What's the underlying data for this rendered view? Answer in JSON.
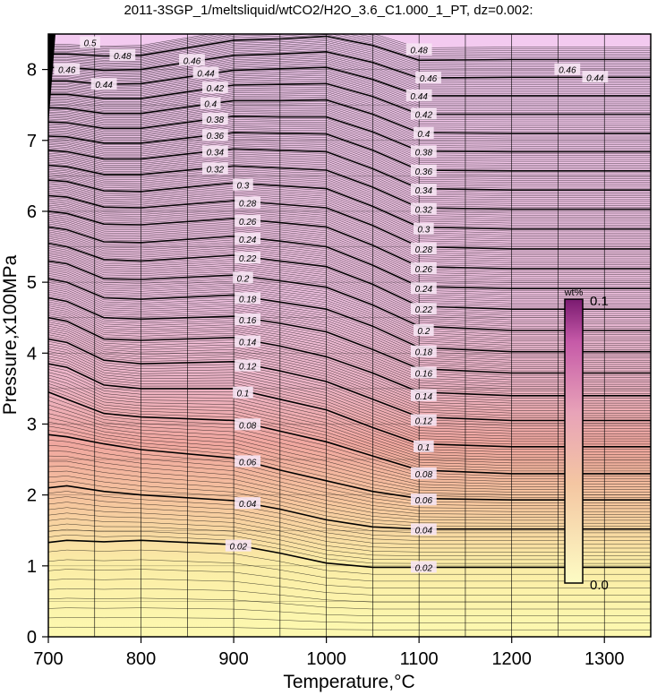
{
  "chart_data": {
    "type": "heatmap",
    "title": "2011-3SGP_1/meltsliquid/wtCO2/H2O_3.6_C1.000_1_PT, dz=0.002:",
    "xlabel": "Temperature,°C",
    "ylabel": "Pressure,x100MPa",
    "xlim": [
      700,
      1350
    ],
    "ylim": [
      0,
      8.5
    ],
    "x_ticks": [
      700,
      800,
      900,
      1000,
      1100,
      1200,
      1300
    ],
    "y_ticks": [
      0,
      1,
      2,
      3,
      4,
      5,
      6,
      7,
      8
    ],
    "x_tick_labels": [
      "700",
      "800",
      "900",
      "1000",
      "1100",
      "1200",
      "1300"
    ],
    "y_tick_labels": [
      "0",
      "1",
      "2",
      "3",
      "4",
      "5",
      "6",
      "7",
      "8"
    ],
    "grid": true,
    "contour_interval": 0.002,
    "major_contour_interval": 0.02,
    "contours": [
      {
        "level": 0.02,
        "label": "0.02",
        "x": [
          700,
          720,
          760,
          800,
          900,
          950,
          1000,
          1050,
          1100,
          1200,
          1350
        ],
        "y": [
          1.33,
          1.36,
          1.34,
          1.36,
          1.3,
          1.18,
          1.04,
          0.98,
          0.98,
          0.98,
          0.98
        ]
      },
      {
        "level": 0.04,
        "label": "0.04",
        "x": [
          700,
          720,
          760,
          800,
          900,
          950,
          1000,
          1050,
          1100,
          1200,
          1350
        ],
        "y": [
          2.1,
          2.13,
          2.05,
          2.0,
          1.92,
          1.8,
          1.65,
          1.55,
          1.52,
          1.52,
          1.52
        ]
      },
      {
        "level": 0.06,
        "label": "0.06",
        "x": [
          700,
          720,
          760,
          800,
          900,
          950,
          1000,
          1050,
          1100,
          1200,
          1350
        ],
        "y": [
          2.85,
          2.82,
          2.72,
          2.64,
          2.52,
          2.35,
          2.2,
          2.05,
          1.95,
          1.93,
          1.93
        ]
      },
      {
        "level": 0.08,
        "label": "0.08",
        "x": [
          700,
          720,
          760,
          800,
          900,
          950,
          1000,
          1050,
          1100,
          1200,
          1350
        ],
        "y": [
          3.45,
          3.35,
          3.15,
          3.1,
          3.05,
          2.9,
          2.75,
          2.55,
          2.35,
          2.3,
          2.3
        ]
      },
      {
        "level": 0.1,
        "label": "0.1",
        "x": [
          700,
          720,
          760,
          800,
          900,
          950,
          1000,
          1050,
          1100,
          1200,
          1350
        ],
        "y": [
          3.85,
          3.8,
          3.55,
          3.5,
          3.5,
          3.35,
          3.2,
          2.95,
          2.72,
          2.68,
          2.68
        ]
      },
      {
        "level": 0.12,
        "label": "0.12",
        "x": [
          700,
          720,
          760,
          800,
          900,
          950,
          1000,
          1050,
          1100,
          1200,
          1350
        ],
        "y": [
          4.2,
          4.15,
          3.9,
          3.85,
          3.88,
          3.75,
          3.6,
          3.35,
          3.1,
          3.05,
          3.05
        ]
      },
      {
        "level": 0.14,
        "label": "0.14",
        "x": [
          700,
          720,
          760,
          800,
          900,
          950,
          1000,
          1050,
          1100,
          1200,
          1350
        ],
        "y": [
          4.5,
          4.45,
          4.2,
          4.18,
          4.22,
          4.1,
          3.95,
          3.72,
          3.45,
          3.4,
          3.4
        ]
      },
      {
        "level": 0.16,
        "label": "0.16",
        "x": [
          700,
          720,
          760,
          800,
          900,
          950,
          1000,
          1050,
          1100,
          1200,
          1350
        ],
        "y": [
          4.78,
          4.73,
          4.5,
          4.48,
          4.52,
          4.42,
          4.3,
          4.05,
          3.78,
          3.72,
          3.72
        ]
      },
      {
        "level": 0.18,
        "label": "0.18",
        "x": [
          700,
          720,
          760,
          800,
          900,
          950,
          1000,
          1050,
          1100,
          1200,
          1350
        ],
        "y": [
          5.05,
          5.0,
          4.78,
          4.76,
          4.82,
          4.72,
          4.62,
          4.38,
          4.08,
          4.02,
          4.02
        ]
      },
      {
        "level": 0.2,
        "label": "0.2",
        "x": [
          700,
          720,
          760,
          800,
          900,
          950,
          1000,
          1050,
          1100,
          1200,
          1350
        ],
        "y": [
          5.3,
          5.26,
          5.05,
          5.04,
          5.1,
          5.02,
          4.93,
          4.68,
          4.38,
          4.32,
          4.32
        ]
      },
      {
        "level": 0.22,
        "label": "0.22",
        "x": [
          700,
          720,
          760,
          800,
          900,
          950,
          1000,
          1050,
          1100,
          1200,
          1350
        ],
        "y": [
          5.55,
          5.5,
          5.32,
          5.3,
          5.38,
          5.3,
          5.22,
          4.97,
          4.66,
          4.62,
          4.62
        ]
      },
      {
        "level": 0.24,
        "label": "0.24",
        "x": [
          700,
          720,
          760,
          800,
          900,
          950,
          1000,
          1050,
          1100,
          1200,
          1350
        ],
        "y": [
          5.78,
          5.74,
          5.57,
          5.56,
          5.65,
          5.58,
          5.5,
          5.24,
          4.94,
          4.91,
          4.91
        ]
      },
      {
        "level": 0.26,
        "label": "0.26",
        "x": [
          700,
          720,
          760,
          800,
          900,
          950,
          1000,
          1050,
          1100,
          1200,
          1350
        ],
        "y": [
          6.0,
          5.97,
          5.82,
          5.81,
          5.9,
          5.84,
          5.78,
          5.52,
          5.22,
          5.19,
          5.19
        ]
      },
      {
        "level": 0.28,
        "label": "0.28",
        "x": [
          700,
          720,
          760,
          800,
          900,
          950,
          1000,
          1050,
          1100,
          1200,
          1350
        ],
        "y": [
          6.22,
          6.2,
          6.06,
          6.05,
          6.15,
          6.1,
          6.05,
          5.8,
          5.5,
          5.47,
          5.47
        ]
      },
      {
        "level": 0.3,
        "label": "0.3",
        "x": [
          700,
          720,
          760,
          800,
          900,
          950,
          1000,
          1050,
          1100,
          1200,
          1350
        ],
        "y": [
          6.44,
          6.42,
          6.29,
          6.28,
          6.4,
          6.36,
          6.32,
          6.07,
          5.78,
          5.75,
          5.75
        ]
      },
      {
        "level": 0.32,
        "label": "0.32",
        "x": [
          700,
          720,
          760,
          800,
          900,
          950,
          1000,
          1050,
          1100,
          1200,
          1350
        ],
        "y": [
          6.65,
          6.63,
          6.52,
          6.52,
          6.64,
          6.61,
          6.58,
          6.34,
          6.05,
          6.03,
          6.03
        ]
      },
      {
        "level": 0.34,
        "label": "0.34",
        "x": [
          700,
          720,
          760,
          800,
          900,
          950,
          1000,
          1050,
          1100,
          1200,
          1350
        ],
        "y": [
          6.86,
          6.84,
          6.74,
          6.74,
          6.88,
          6.86,
          6.84,
          6.6,
          6.32,
          6.3,
          6.3
        ]
      },
      {
        "level": 0.36,
        "label": "0.36",
        "x": [
          700,
          720,
          760,
          800,
          900,
          950,
          1000,
          1050,
          1100,
          1200,
          1350
        ],
        "y": [
          7.06,
          7.05,
          6.96,
          6.96,
          7.11,
          7.1,
          7.09,
          6.86,
          6.58,
          6.57,
          6.57
        ]
      },
      {
        "level": 0.38,
        "label": "0.38",
        "x": [
          700,
          720,
          760,
          800,
          900,
          950,
          1000,
          1050,
          1100,
          1200,
          1350
        ],
        "y": [
          7.26,
          7.25,
          7.17,
          7.17,
          7.34,
          7.33,
          7.33,
          7.12,
          6.85,
          6.84,
          6.84
        ]
      },
      {
        "level": 0.4,
        "label": "0.4",
        "x": [
          700,
          720,
          760,
          800,
          900,
          950,
          1000,
          1050,
          1100,
          1200,
          1350
        ],
        "y": [
          7.46,
          7.45,
          7.38,
          7.38,
          7.56,
          7.56,
          7.57,
          7.37,
          7.11,
          7.1,
          7.1
        ]
      },
      {
        "level": 0.42,
        "label": "0.42",
        "x": [
          700,
          720,
          760,
          800,
          900,
          950,
          1000,
          1050,
          1100,
          1200,
          1350
        ],
        "y": [
          7.65,
          7.65,
          7.59,
          7.59,
          7.78,
          7.79,
          7.8,
          7.62,
          7.37,
          7.37,
          7.37
        ]
      },
      {
        "level": 0.44,
        "label": "0.44",
        "x": [
          700,
          720,
          760,
          800,
          900,
          950,
          1000,
          1050,
          1100,
          1200,
          1350
        ],
        "y": [
          7.84,
          7.84,
          7.79,
          7.8,
          7.99,
          8.01,
          8.03,
          7.86,
          7.63,
          7.63,
          7.63
        ]
      },
      {
        "level": 0.46,
        "label": "0.46",
        "x": [
          700,
          720,
          760,
          800,
          900,
          950,
          1000,
          1050,
          1100,
          1200,
          1350
        ],
        "y": [
          8.03,
          8.03,
          7.99,
          8.0,
          8.2,
          8.22,
          8.25,
          8.1,
          7.88,
          7.89,
          7.89
        ]
      },
      {
        "level": 0.48,
        "label": "0.48",
        "x": [
          700,
          720,
          760,
          800,
          900,
          950,
          1000,
          1050,
          1100,
          1200,
          1350
        ],
        "y": [
          8.22,
          8.22,
          8.19,
          8.2,
          8.41,
          8.43,
          8.47,
          8.34,
          8.13,
          8.14,
          8.14
        ]
      }
    ],
    "contour_labels": [
      {
        "text": "0.02",
        "x": [
          905,
          1105
        ],
        "y": [
          1.28,
          0.98
        ]
      },
      {
        "text": "0.04",
        "x": [
          915,
          1105
        ],
        "y": [
          1.88,
          1.51
        ]
      },
      {
        "text": "0.06",
        "x": [
          915,
          1105
        ],
        "y": [
          2.47,
          1.93
        ]
      },
      {
        "text": "0.08",
        "x": [
          915,
          1105
        ],
        "y": [
          2.99,
          2.3
        ]
      },
      {
        "text": "0.1",
        "x": [
          910,
          1105
        ],
        "y": [
          3.44,
          2.68
        ]
      },
      {
        "text": "0.12",
        "x": [
          915,
          1105
        ],
        "y": [
          3.82,
          3.05
        ]
      },
      {
        "text": "0.14",
        "x": [
          915,
          1105
        ],
        "y": [
          4.16,
          3.4
        ]
      },
      {
        "text": "0.16",
        "x": [
          915,
          1105
        ],
        "y": [
          4.47,
          3.72
        ]
      },
      {
        "text": "0.18",
        "x": [
          915,
          1105
        ],
        "y": [
          4.77,
          4.02
        ]
      },
      {
        "text": "0.2",
        "x": [
          910,
          1105
        ],
        "y": [
          5.06,
          4.32
        ]
      },
      {
        "text": "0.22",
        "x": [
          915,
          1105
        ],
        "y": [
          5.34,
          4.62
        ]
      },
      {
        "text": "0.24",
        "x": [
          915,
          1105
        ],
        "y": [
          5.61,
          4.91
        ]
      },
      {
        "text": "0.26",
        "x": [
          915,
          1105
        ],
        "y": [
          5.86,
          5.19
        ]
      },
      {
        "text": "0.28",
        "x": [
          915,
          1105
        ],
        "y": [
          6.12,
          5.47
        ]
      },
      {
        "text": "0.3",
        "x": [
          910,
          1105
        ],
        "y": [
          6.37,
          5.75
        ]
      },
      {
        "text": "0.32",
        "x": [
          880,
          1105
        ],
        "y": [
          6.6,
          6.03
        ]
      },
      {
        "text": "0.34",
        "x": [
          880,
          1105
        ],
        "y": [
          6.84,
          6.3
        ]
      },
      {
        "text": "0.36",
        "x": [
          880,
          1105
        ],
        "y": [
          7.07,
          6.57
        ]
      },
      {
        "text": "0.38",
        "x": [
          880,
          1105
        ],
        "y": [
          7.3,
          6.84
        ]
      },
      {
        "text": "0.4",
        "x": [
          875,
          1105
        ],
        "y": [
          7.52,
          7.1
        ]
      },
      {
        "text": "0.42",
        "x": [
          880,
          1105
        ],
        "y": [
          7.74,
          7.37
        ]
      },
      {
        "text": "0.44",
        "x": [
          760,
          870,
          1100,
          1290
        ],
        "y": [
          7.79,
          7.95,
          7.63,
          7.89
        ]
      },
      {
        "text": "0.46",
        "x": [
          720,
          855,
          1110,
          1260
        ],
        "y": [
          8.0,
          8.13,
          7.88,
          8.0
        ]
      },
      {
        "text": "0.48",
        "x": [
          780,
          1100
        ],
        "y": [
          8.2,
          8.28
        ]
      },
      {
        "text": "0.5",
        "x": [
          745
        ],
        "y": [
          8.38
        ]
      }
    ],
    "colorbar": {
      "label": "wt%",
      "min": 0.0,
      "max": 0.1,
      "min_label": "0.0",
      "max_label": "0.1",
      "colors": [
        "#fdfcc4",
        "#f5c7a5",
        "#e9a5c0",
        "#c55aa3",
        "#7a1a70"
      ]
    },
    "background_colors": {
      "low": "#fdf7a8",
      "mid": "#f2a99a",
      "high": "#f2c8ee"
    }
  }
}
